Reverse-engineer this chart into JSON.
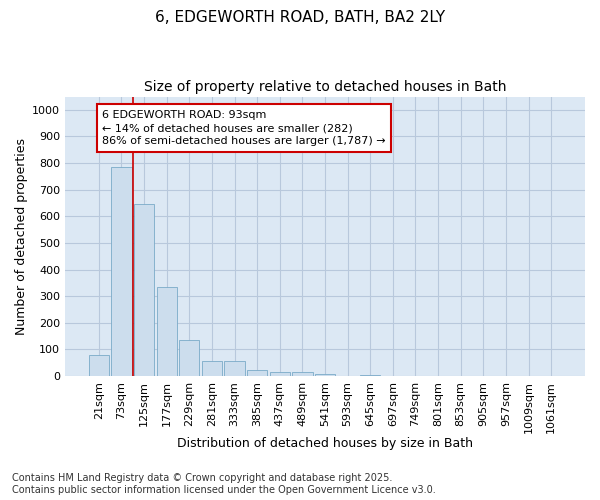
{
  "title1": "6, EDGEWORTH ROAD, BATH, BA2 2LY",
  "title2": "Size of property relative to detached houses in Bath",
  "xlabel": "Distribution of detached houses by size in Bath",
  "ylabel": "Number of detached properties",
  "categories": [
    "21sqm",
    "73sqm",
    "125sqm",
    "177sqm",
    "229sqm",
    "281sqm",
    "333sqm",
    "385sqm",
    "437sqm",
    "489sqm",
    "541sqm",
    "593sqm",
    "645sqm",
    "697sqm",
    "749sqm",
    "801sqm",
    "853sqm",
    "905sqm",
    "957sqm",
    "1009sqm",
    "1061sqm"
  ],
  "values": [
    80,
    785,
    648,
    335,
    135,
    57,
    57,
    22,
    15,
    14,
    8,
    0,
    5,
    0,
    0,
    0,
    0,
    0,
    0,
    0,
    0
  ],
  "bar_color": "#ccdded",
  "bar_edge_color": "#7aaac8",
  "red_line_x": 1.5,
  "annotation_text": "6 EDGEWORTH ROAD: 93sqm\n← 14% of detached houses are smaller (282)\n86% of semi-detached houses are larger (1,787) →",
  "annotation_box_color": "#ffffff",
  "annotation_box_edge": "#cc0000",
  "red_line_color": "#cc0000",
  "ylim": [
    0,
    1050
  ],
  "yticks": [
    0,
    100,
    200,
    300,
    400,
    500,
    600,
    700,
    800,
    900,
    1000
  ],
  "grid_color": "#b8c8dc",
  "bg_color": "#dce8f4",
  "fig_bg_color": "#ffffff",
  "footer": "Contains HM Land Registry data © Crown copyright and database right 2025.\nContains public sector information licensed under the Open Government Licence v3.0.",
  "title_fontsize": 11,
  "subtitle_fontsize": 10,
  "axis_label_fontsize": 9,
  "tick_fontsize": 8,
  "footer_fontsize": 7,
  "annotation_fontsize": 8
}
